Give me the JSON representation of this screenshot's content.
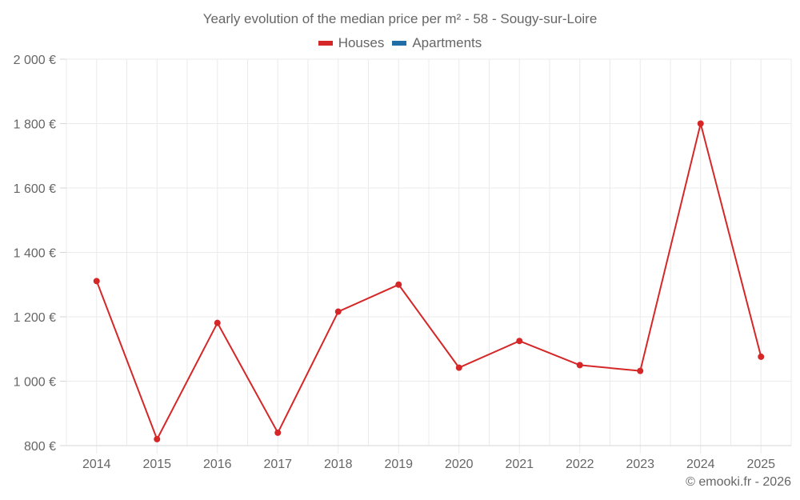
{
  "title": "Yearly evolution of the median price per m² - 58 - Sougy-sur-Loire",
  "legend": [
    {
      "label": "Houses",
      "color": "#d62728"
    },
    {
      "label": "Apartments",
      "color": "#1f6ea6"
    }
  ],
  "credit": "© emooki.fr - 2026",
  "colors": {
    "line": "#d62728",
    "grid": "#ebebeb",
    "axis": "#d6d6d6",
    "text": "#666666"
  },
  "chart_data": {
    "type": "line",
    "title": "Yearly evolution of the median price per m² - 58 - Sougy-sur-Loire",
    "xlabel": "",
    "ylabel": "",
    "categories": [
      "2014",
      "2015",
      "2016",
      "2017",
      "2018",
      "2019",
      "2020",
      "2021",
      "2022",
      "2023",
      "2024",
      "2025"
    ],
    "series": [
      {
        "name": "Houses",
        "color": "#d62728",
        "values": [
          1311,
          820,
          1181,
          840,
          1216,
          1300,
          1042,
          1125,
          1050,
          1032,
          1800,
          1076
        ]
      },
      {
        "name": "Apartments",
        "color": "#1f6ea6",
        "values": []
      }
    ],
    "ylim": [
      800,
      2000
    ],
    "yticks": [
      800,
      1000,
      1200,
      1400,
      1600,
      1800,
      2000
    ],
    "ytick_labels": [
      "800 €",
      "1 000 €",
      "1 200 €",
      "1 400 €",
      "1 600 €",
      "1 800 €",
      "2 000 €"
    ],
    "grid": true,
    "legend_position": "top"
  }
}
